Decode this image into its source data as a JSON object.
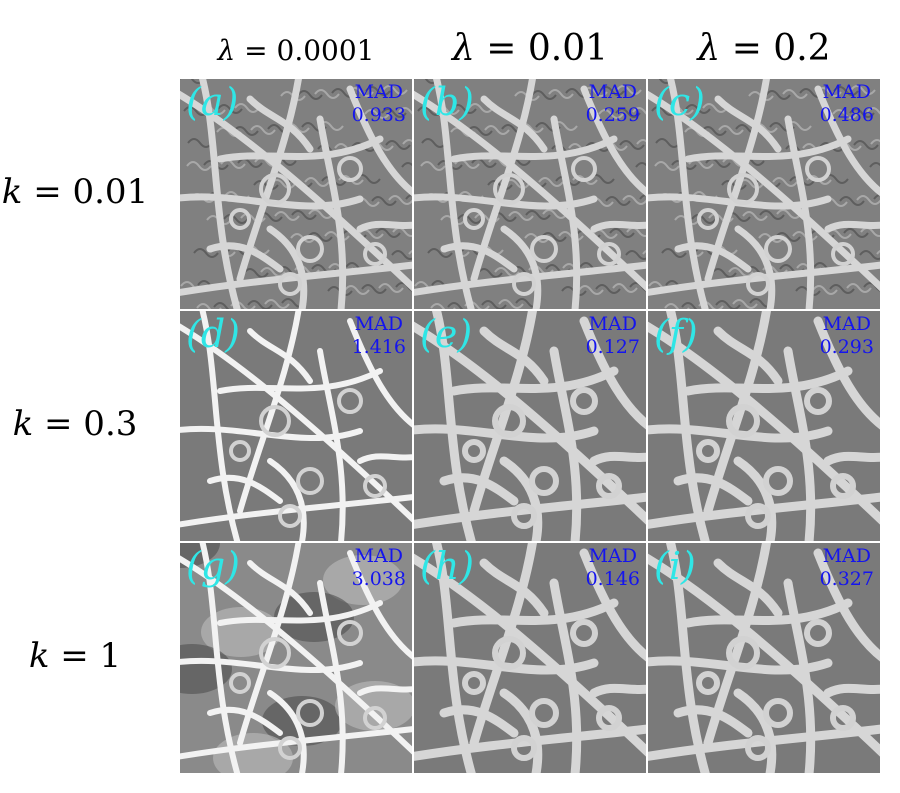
{
  "columns": [
    {
      "symbol": "λ",
      "eq": " = 0.0001"
    },
    {
      "symbol": "λ",
      "eq": " = 0.01"
    },
    {
      "symbol": "λ",
      "eq": " = 0.2"
    }
  ],
  "rows": [
    {
      "symbol": "k",
      "eq": " = 0.01"
    },
    {
      "symbol": "k",
      "eq": " = 0.3"
    },
    {
      "symbol": "k",
      "eq": " = 1"
    }
  ],
  "panels": [
    {
      "label": "(a)",
      "mad_label": "MAD",
      "mad_value": "0.933"
    },
    {
      "label": "(b)",
      "mad_label": "MAD",
      "mad_value": "0.259"
    },
    {
      "label": "(c)",
      "mad_label": "MAD",
      "mad_value": "0.486"
    },
    {
      "label": "(d)",
      "mad_label": "MAD",
      "mad_value": "1.416"
    },
    {
      "label": "(e)",
      "mad_label": "MAD",
      "mad_value": "0.127"
    },
    {
      "label": "(f)",
      "mad_label": "MAD",
      "mad_value": "0.293"
    },
    {
      "label": "(g)",
      "mad_label": "MAD",
      "mad_value": "3.038"
    },
    {
      "label": "(h)",
      "mad_label": "MAD",
      "mad_value": "0.146"
    },
    {
      "label": "(i)",
      "mad_label": "MAD",
      "mad_value": "0.327"
    }
  ],
  "colors": {
    "panel_label": "#2fe6e6",
    "mad_text": "#1414ee",
    "vein": "#d8d8d8",
    "background": "#7a7a7a"
  }
}
